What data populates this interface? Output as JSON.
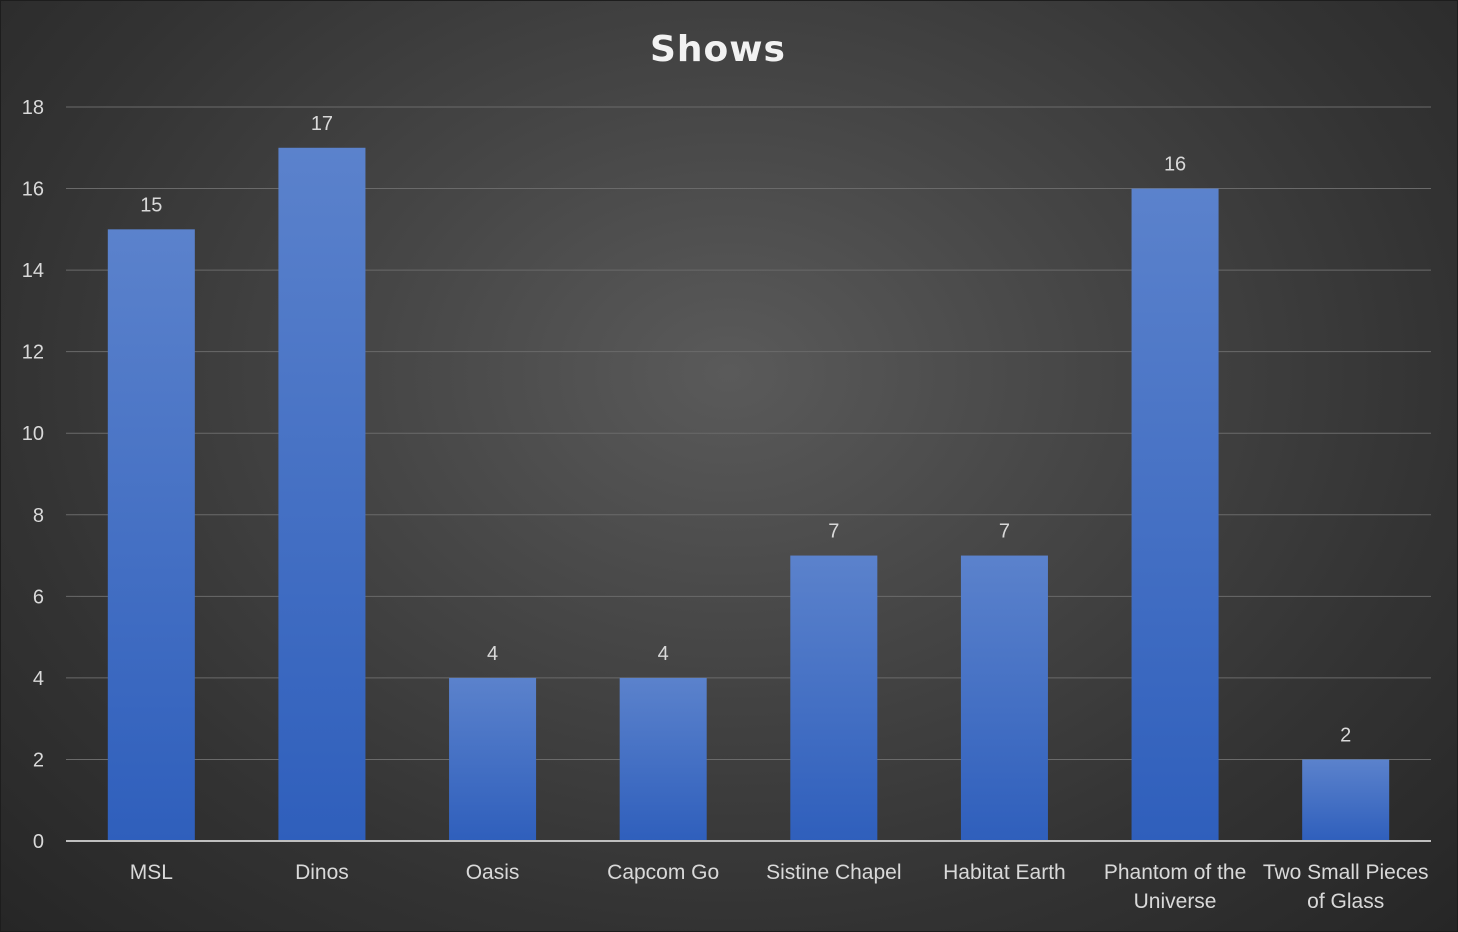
{
  "chart_data": {
    "type": "bar",
    "title": "Shows",
    "categories": [
      [
        "MSL"
      ],
      [
        "Dinos"
      ],
      [
        "Oasis"
      ],
      [
        "Capcom Go"
      ],
      [
        "Sistine Chapel"
      ],
      [
        "Habitat Earth"
      ],
      [
        "Phantom of the",
        "Universe"
      ],
      [
        "Two Small Pieces",
        "of Glass"
      ]
    ],
    "values": [
      15,
      17,
      4,
      4,
      7,
      7,
      16,
      2
    ],
    "data_labels": [
      "15",
      "17",
      "4",
      "4",
      "7",
      "7",
      "16",
      "2"
    ],
    "y_ticks": [
      "0",
      "2",
      "4",
      "6",
      "8",
      "10",
      "12",
      "14",
      "16",
      "18"
    ],
    "ylim": [
      0,
      18
    ],
    "y_step": 2,
    "xlabel": "",
    "ylabel": "",
    "grid": true,
    "legend": "none"
  },
  "colors": {
    "bar_top": "#5b82cc",
    "bar_bottom": "#2f5fbc",
    "text": "#d9d9d9",
    "title": "#f2f2f2"
  }
}
